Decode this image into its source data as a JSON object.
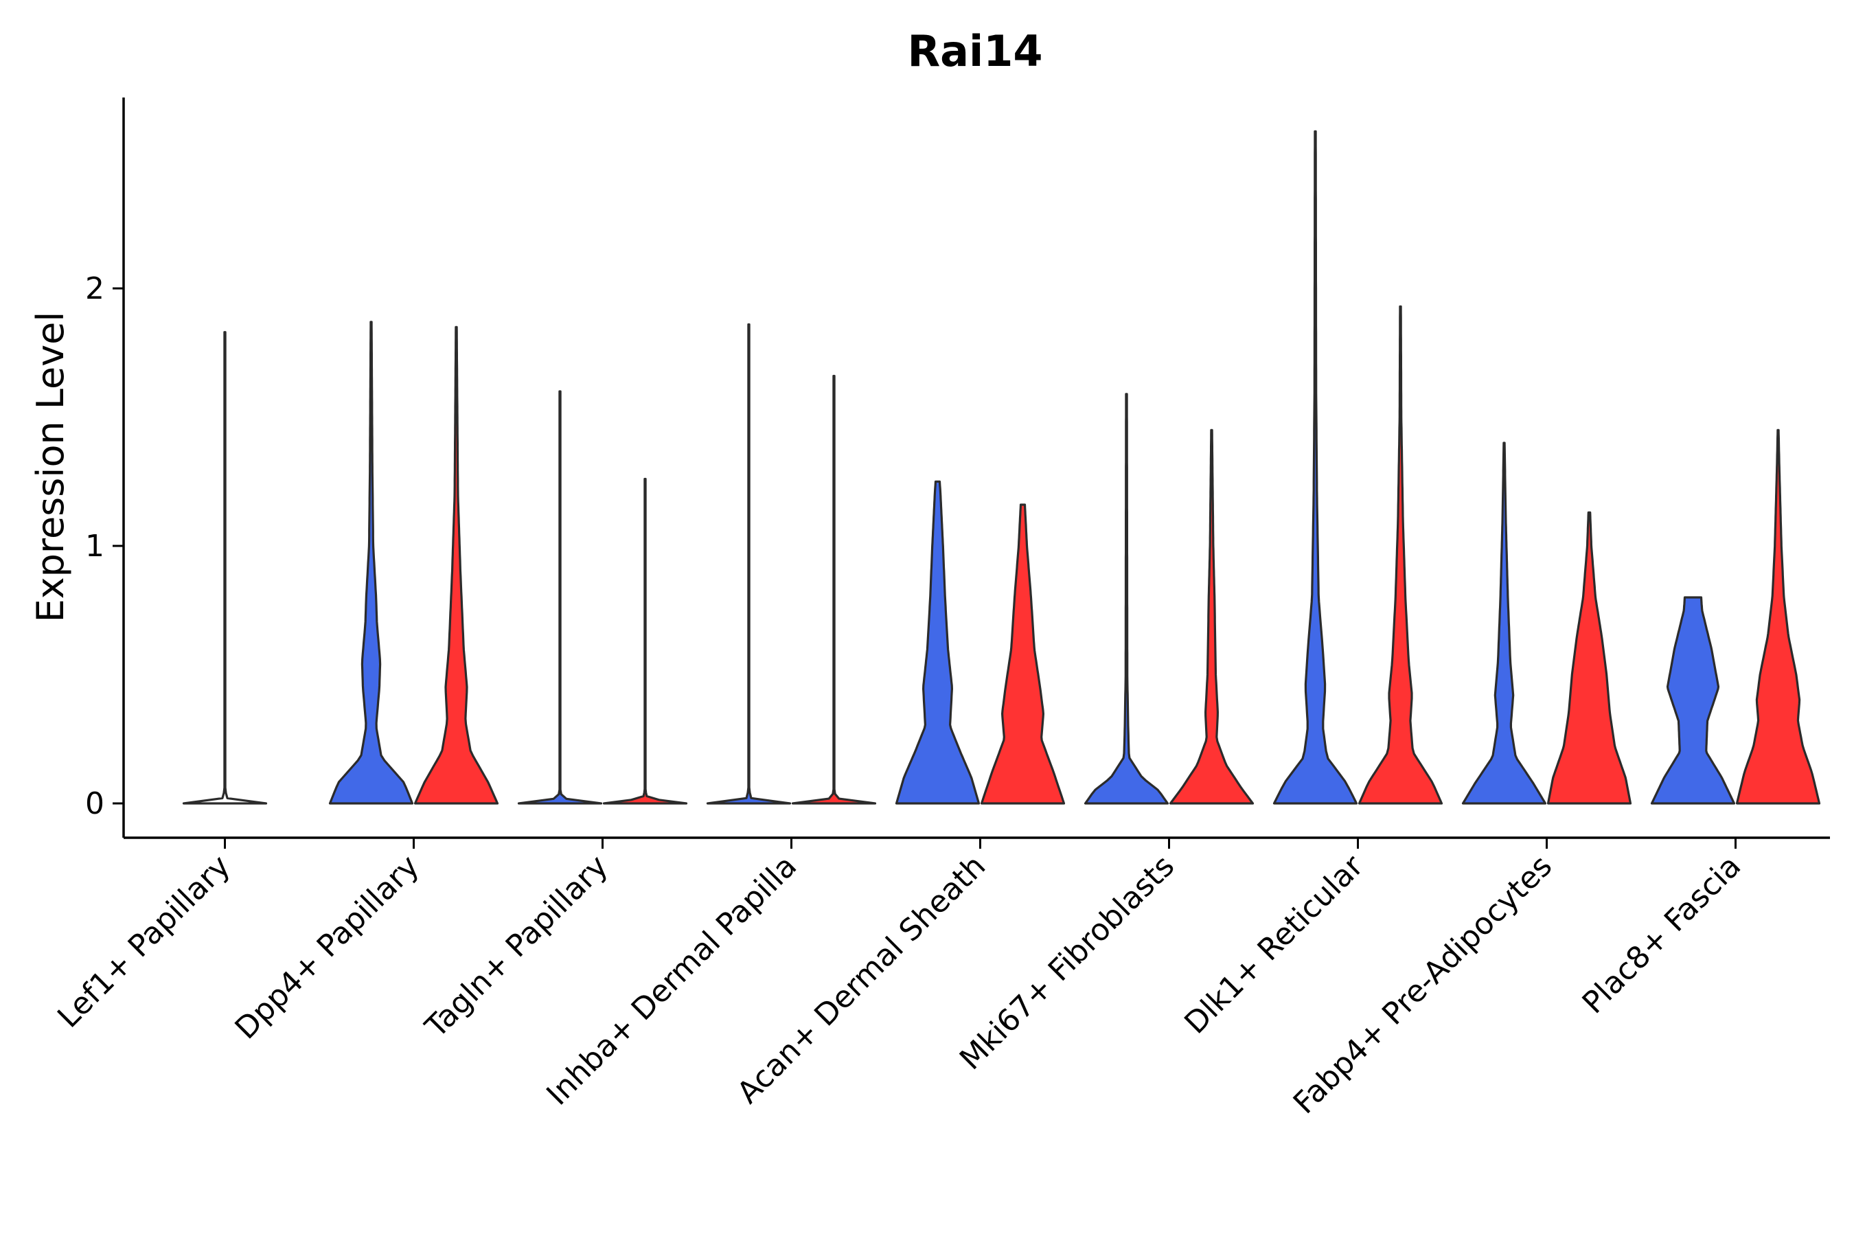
{
  "chart_data": {
    "type": "violin",
    "title": "Rai14",
    "xlabel": "",
    "ylabel": "Expression Level",
    "ylim": [
      -0.13,
      2.75
    ],
    "yticks": [
      0,
      1,
      2
    ],
    "legend": "none",
    "colors": {
      "group1": "#4169e8",
      "group2": "#ff3333",
      "stroke": "#2b2b2b"
    },
    "categories": [
      "Lef1+ Papillary",
      "Dpp4+ Papillary",
      "Tagln+ Papillary",
      "Inhba+ Dermal Papilla",
      "Acan+ Dermal Sheath",
      "Mki67+ Fibroblasts",
      "Dlk1+ Reticular",
      "Fabp4+ Pre-Adipocytes",
      "Plac8+ Fascia"
    ],
    "series": [
      {
        "name": "group1",
        "max_values": [
          1.83,
          1.87,
          1.6,
          1.86,
          1.25,
          1.59,
          2.61,
          1.4,
          0.8
        ],
        "density_profiles": [
          [
            [
              0,
              1
            ],
            [
              0.02,
              0.06
            ],
            [
              0.05,
              0.01
            ],
            [
              1.83,
              0.01
            ]
          ],
          [
            [
              0,
              1
            ],
            [
              0.08,
              0.8
            ],
            [
              0.18,
              0.25
            ],
            [
              0.3,
              0.12
            ],
            [
              0.45,
              0.2
            ],
            [
              0.55,
              0.22
            ],
            [
              0.7,
              0.14
            ],
            [
              0.8,
              0.12
            ],
            [
              1.0,
              0.05
            ],
            [
              1.3,
              0.03
            ],
            [
              1.87,
              0.01
            ]
          ],
          [
            [
              0,
              1
            ],
            [
              0.02,
              0.05
            ],
            [
              0.05,
              0.01
            ],
            [
              1.6,
              0.01
            ]
          ],
          [
            [
              0,
              1
            ],
            [
              0.02,
              0.06
            ],
            [
              0.05,
              0.01
            ],
            [
              1.86,
              0.01
            ]
          ],
          [
            [
              0,
              1
            ],
            [
              0.1,
              0.82
            ],
            [
              0.2,
              0.55
            ],
            [
              0.3,
              0.3
            ],
            [
              0.45,
              0.35
            ],
            [
              0.6,
              0.25
            ],
            [
              0.8,
              0.18
            ],
            [
              1.0,
              0.13
            ],
            [
              1.2,
              0.07
            ],
            [
              1.25,
              0.05
            ]
          ],
          [
            [
              0,
              1
            ],
            [
              0.05,
              0.78
            ],
            [
              0.1,
              0.38
            ],
            [
              0.18,
              0.06
            ],
            [
              0.3,
              0.04
            ],
            [
              0.5,
              0.02
            ],
            [
              1.59,
              0.01
            ]
          ],
          [
            [
              0,
              1
            ],
            [
              0.08,
              0.75
            ],
            [
              0.18,
              0.28
            ],
            [
              0.3,
              0.18
            ],
            [
              0.45,
              0.24
            ],
            [
              0.6,
              0.18
            ],
            [
              0.8,
              0.08
            ],
            [
              1.2,
              0.04
            ],
            [
              1.6,
              0.02
            ],
            [
              2.61,
              0.01
            ]
          ],
          [
            [
              0,
              1
            ],
            [
              0.08,
              0.7
            ],
            [
              0.18,
              0.28
            ],
            [
              0.3,
              0.16
            ],
            [
              0.42,
              0.22
            ],
            [
              0.55,
              0.15
            ],
            [
              0.8,
              0.09
            ],
            [
              1.1,
              0.04
            ],
            [
              1.4,
              0.01
            ]
          ],
          [
            [
              0,
              1
            ],
            [
              0.1,
              0.7
            ],
            [
              0.2,
              0.32
            ],
            [
              0.32,
              0.35
            ],
            [
              0.45,
              0.62
            ],
            [
              0.6,
              0.45
            ],
            [
              0.75,
              0.22
            ],
            [
              0.8,
              0.2
            ]
          ]
        ]
      },
      {
        "name": "group2",
        "max_values": [
          null,
          1.85,
          1.26,
          1.66,
          1.16,
          1.45,
          1.93,
          1.13,
          1.45
        ],
        "density_profiles": [
          null,
          [
            [
              0,
              1
            ],
            [
              0.08,
              0.78
            ],
            [
              0.2,
              0.35
            ],
            [
              0.32,
              0.22
            ],
            [
              0.45,
              0.26
            ],
            [
              0.6,
              0.18
            ],
            [
              0.75,
              0.14
            ],
            [
              0.9,
              0.1
            ],
            [
              1.2,
              0.04
            ],
            [
              1.85,
              0.01
            ]
          ],
          [
            [
              0,
              1
            ],
            [
              0.02,
              0.05
            ],
            [
              0.05,
              0.01
            ],
            [
              1.26,
              0.01
            ]
          ],
          [
            [
              0,
              1
            ],
            [
              0.02,
              0.05
            ],
            [
              0.05,
              0.01
            ],
            [
              1.66,
              0.01
            ]
          ],
          [
            [
              0,
              1
            ],
            [
              0.12,
              0.75
            ],
            [
              0.25,
              0.45
            ],
            [
              0.35,
              0.5
            ],
            [
              0.45,
              0.42
            ],
            [
              0.6,
              0.28
            ],
            [
              0.8,
              0.2
            ],
            [
              1.0,
              0.1
            ],
            [
              1.16,
              0.05
            ]
          ],
          [
            [
              0,
              1
            ],
            [
              0.06,
              0.72
            ],
            [
              0.15,
              0.35
            ],
            [
              0.25,
              0.12
            ],
            [
              0.35,
              0.15
            ],
            [
              0.5,
              0.1
            ],
            [
              0.8,
              0.07
            ],
            [
              1.0,
              0.04
            ],
            [
              1.45,
              0.01
            ]
          ],
          [
            [
              0,
              1
            ],
            [
              0.08,
              0.78
            ],
            [
              0.2,
              0.3
            ],
            [
              0.32,
              0.24
            ],
            [
              0.42,
              0.28
            ],
            [
              0.55,
              0.2
            ],
            [
              0.8,
              0.12
            ],
            [
              1.1,
              0.06
            ],
            [
              1.5,
              0.02
            ],
            [
              1.93,
              0.01
            ]
          ],
          [
            [
              0,
              1
            ],
            [
              0.1,
              0.88
            ],
            [
              0.22,
              0.62
            ],
            [
              0.35,
              0.5
            ],
            [
              0.5,
              0.42
            ],
            [
              0.65,
              0.3
            ],
            [
              0.8,
              0.15
            ],
            [
              1.0,
              0.05
            ],
            [
              1.13,
              0.02
            ]
          ],
          [
            [
              0,
              1
            ],
            [
              0.12,
              0.82
            ],
            [
              0.22,
              0.6
            ],
            [
              0.32,
              0.48
            ],
            [
              0.4,
              0.52
            ],
            [
              0.5,
              0.44
            ],
            [
              0.65,
              0.25
            ],
            [
              0.8,
              0.14
            ],
            [
              1.0,
              0.08
            ],
            [
              1.3,
              0.03
            ],
            [
              1.45,
              0.01
            ]
          ]
        ]
      }
    ]
  }
}
